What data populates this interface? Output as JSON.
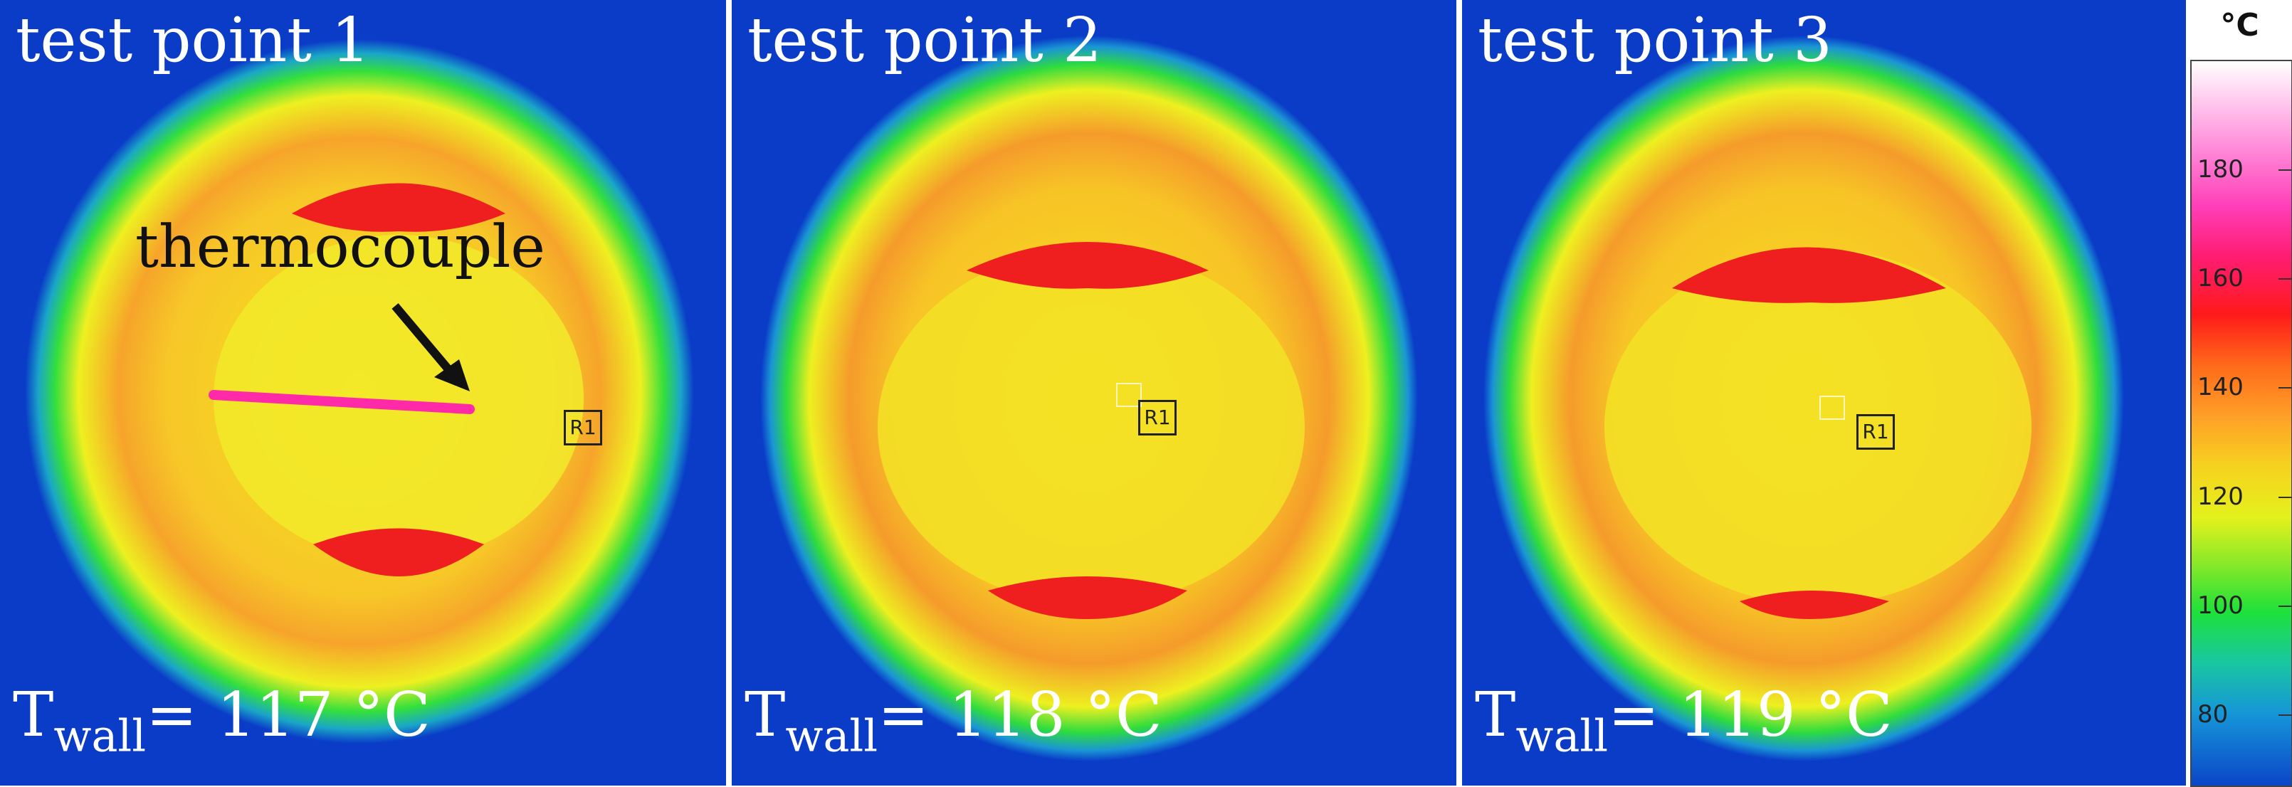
{
  "panels": [
    {
      "label": "test point 1",
      "twall_symbol": "T",
      "twall_sub": "wall",
      "twall_value": "= 117 °C",
      "roi_label": "R1"
    },
    {
      "label": "test point 2",
      "twall_symbol": "T",
      "twall_sub": "wall",
      "twall_value": "= 118 °C",
      "roi_label": "R1"
    },
    {
      "label": "test point 3",
      "twall_symbol": "T",
      "twall_sub": "wall",
      "twall_value": "= 119 °C",
      "roi_label": "R1"
    }
  ],
  "annotation": {
    "text": "thermocouple"
  },
  "scale": {
    "unit": "°C",
    "ticks": [
      "180",
      "160",
      "140",
      "120",
      "100",
      "80"
    ],
    "colors": {
      "low": "#0a46c8",
      "green": "#1ee13a",
      "yellow": "#e4f11b",
      "orange": "#ff9f27",
      "red": "#ff1a1a",
      "magenta": "#ff3fb8",
      "high": "#ffffff"
    }
  }
}
